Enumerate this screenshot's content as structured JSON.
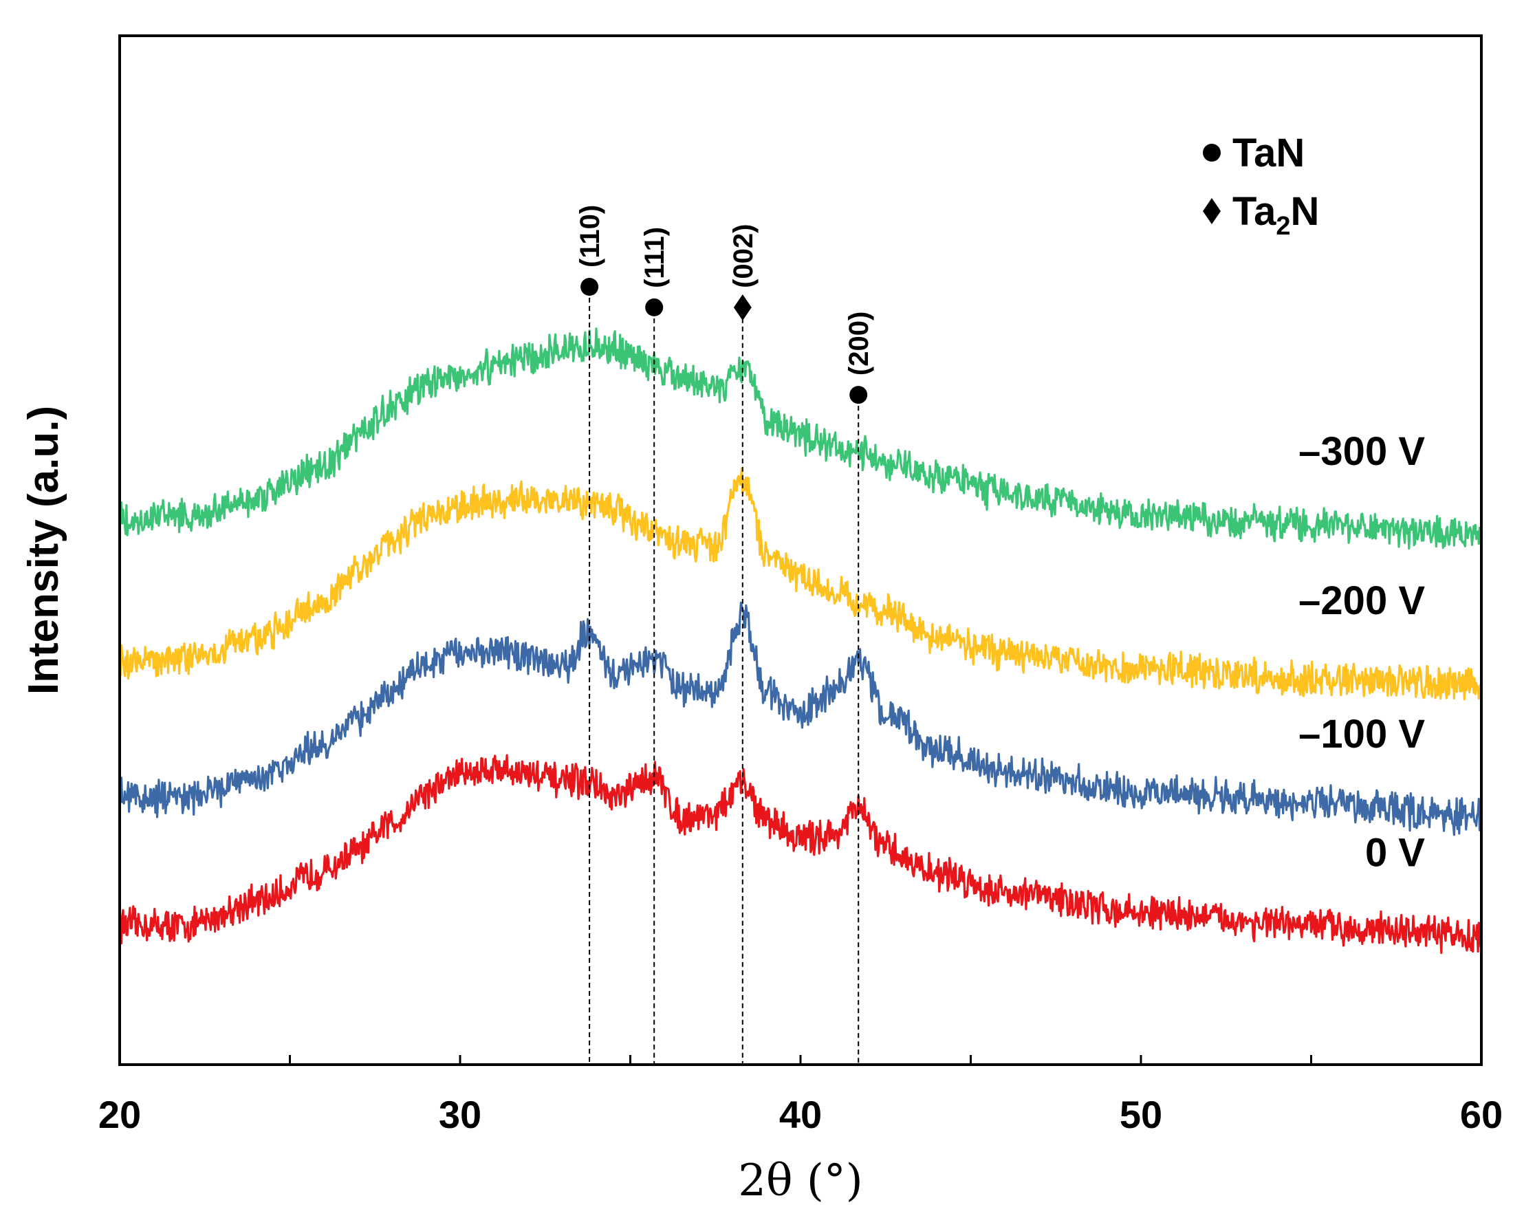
{
  "chart_data": {
    "type": "line",
    "xlabel": "2θ (°)",
    "ylabel": "Intensity (a.u.)",
    "xlim": [
      20,
      60
    ],
    "ylim": [
      0,
      100
    ],
    "xticks": [
      "20",
      "30",
      "40",
      "50",
      "60"
    ],
    "legend": {
      "position": "top-right",
      "entries": [
        {
          "marker": "circle",
          "label": "TaN"
        },
        {
          "marker": "diamond",
          "label": "Ta",
          "subscript": "2",
          "suffix": "N"
        }
      ]
    },
    "peaks": [
      {
        "x": 33.8,
        "label": "(110)",
        "marker": "circle",
        "phase": "TaN"
      },
      {
        "x": 35.7,
        "label": "(111)",
        "marker": "circle",
        "phase": "TaN"
      },
      {
        "x": 38.3,
        "label": "(002)",
        "marker": "diamond",
        "phase": "Ta2N"
      },
      {
        "x": 41.7,
        "label": "(200)",
        "marker": "circle",
        "phase": "TaN"
      }
    ],
    "series": [
      {
        "name": "0 V",
        "color": "#e8161b",
        "x": [
          20,
          22,
          24,
          26,
          27,
          28,
          29,
          30,
          31,
          32,
          33,
          33.8,
          34.5,
          35.7,
          36.5,
          37.5,
          38.3,
          39,
          40,
          41,
          41.7,
          42.5,
          44,
          46,
          50,
          55,
          60
        ],
        "y": [
          13.6,
          13.5,
          15.8,
          18.8,
          20.8,
          23.5,
          26.5,
          28.3,
          28.8,
          28.3,
          27.5,
          27.5,
          25.8,
          28.0,
          24.0,
          24.5,
          27.3,
          23.8,
          22.0,
          22.4,
          24.8,
          20.9,
          18.6,
          16.8,
          14.8,
          13.5,
          12.5
        ]
      },
      {
        "name": "-100 V",
        "color": "#3d6aa6",
        "x": [
          20,
          22,
          24,
          26,
          27,
          28,
          29,
          30,
          31,
          32,
          33,
          33.8,
          34.5,
          35.7,
          36.5,
          37.5,
          38.3,
          39,
          40,
          41,
          41.7,
          42.5,
          44,
          46,
          50,
          55,
          60
        ],
        "y": [
          26.0,
          25.8,
          28.0,
          31.0,
          33.5,
          36.5,
          39.0,
          40.0,
          40.0,
          39.5,
          38.5,
          42.0,
          38.0,
          39.5,
          36.5,
          36.3,
          43.5,
          36.0,
          34.0,
          36.5,
          39.5,
          34.3,
          30.5,
          28.5,
          26.5,
          25.5,
          24.0
        ]
      },
      {
        "name": "-200 V",
        "color": "#fec11d",
        "x": [
          20,
          22,
          24,
          26,
          27,
          28,
          29,
          30,
          31,
          32,
          33,
          33.8,
          34.5,
          35.7,
          36.5,
          37.5,
          38.3,
          39,
          40,
          41,
          41.7,
          42.5,
          44,
          46,
          50,
          55,
          60
        ],
        "y": [
          39.0,
          39.5,
          41.5,
          45.0,
          48.0,
          51.0,
          53.5,
          54.5,
          54.8,
          55.0,
          55.0,
          54.5,
          54.0,
          52.0,
          50.5,
          50.5,
          57.0,
          49.5,
          47.5,
          46.0,
          45.0,
          44.0,
          41.5,
          40.0,
          38.5,
          37.5,
          37.0
        ]
      },
      {
        "name": "-300 V",
        "color": "#3cc476",
        "x": [
          20,
          22,
          24,
          26,
          27,
          28,
          29,
          30,
          31,
          32,
          33,
          33.8,
          34.5,
          35.7,
          36.5,
          37.5,
          38.3,
          39,
          40,
          41,
          41.7,
          42.5,
          44,
          46,
          50,
          55,
          60
        ],
        "y": [
          53.0,
          53.2,
          55.0,
          58.0,
          61.0,
          64.0,
          66.0,
          67.0,
          67.8,
          68.8,
          69.5,
          70.0,
          69.5,
          68.0,
          66.5,
          65.5,
          68.0,
          63.0,
          61.0,
          60.0,
          59.5,
          58.5,
          57.0,
          55.5,
          53.5,
          52.5,
          51.5
        ]
      }
    ]
  }
}
